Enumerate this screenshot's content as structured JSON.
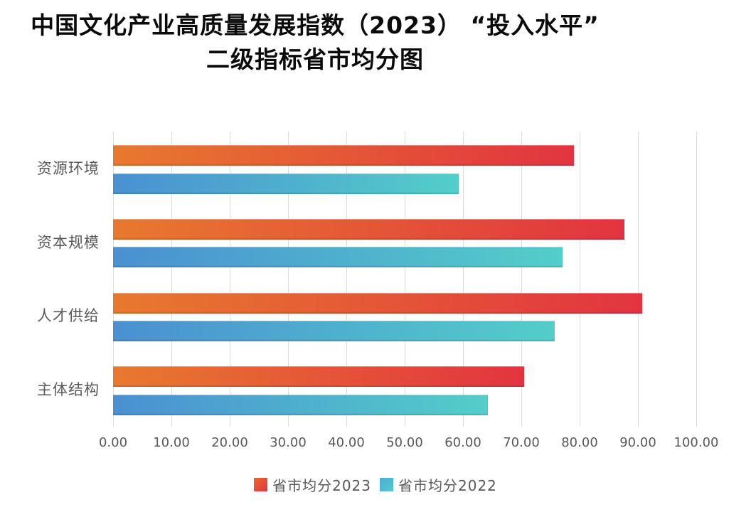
{
  "title": {
    "line1": "中国文化产业高质量发展指数（2023） “投入水平”",
    "line2": "二级指标省市均分图"
  },
  "colors": {
    "title_text": "#0b0b0b",
    "axis_text": "#595959",
    "gridline": "#dcdcdc",
    "background": "#ffffff"
  },
  "chart_data": {
    "type": "bar",
    "orientation": "horizontal",
    "title": "中国文化产业高质量发展指数（2023） “投入水平” 二级指标省市均分图",
    "categories": [
      "资源环境",
      "资本规模",
      "人才供给",
      "主体结构"
    ],
    "series": [
      {
        "name": "省市均分2023",
        "year": "2023",
        "values": [
          79.0,
          87.7,
          90.7,
          70.5
        ],
        "color_start": "#E8792E",
        "color_end": "#E23440",
        "legend_color_start": "#E76A2E",
        "legend_color_end": "#E23440"
      },
      {
        "name": "省市均分2022",
        "year": "2022",
        "values": [
          59.3,
          77.1,
          75.7,
          64.3
        ],
        "color_start": "#4A90D2",
        "color_end": "#53CEC9",
        "legend_color_start": "#4BAED8",
        "legend_color_end": "#52C9CE"
      }
    ],
    "x_ticks": [
      "0.00",
      "10.00",
      "20.00",
      "30.00",
      "40.00",
      "50.00",
      "60.00",
      "70.00",
      "80.00",
      "90.00",
      "100.00"
    ],
    "xlim": [
      0,
      100
    ],
    "xlabel": "",
    "ylabel": "",
    "grid": "vertical",
    "legend_position": "bottom"
  }
}
